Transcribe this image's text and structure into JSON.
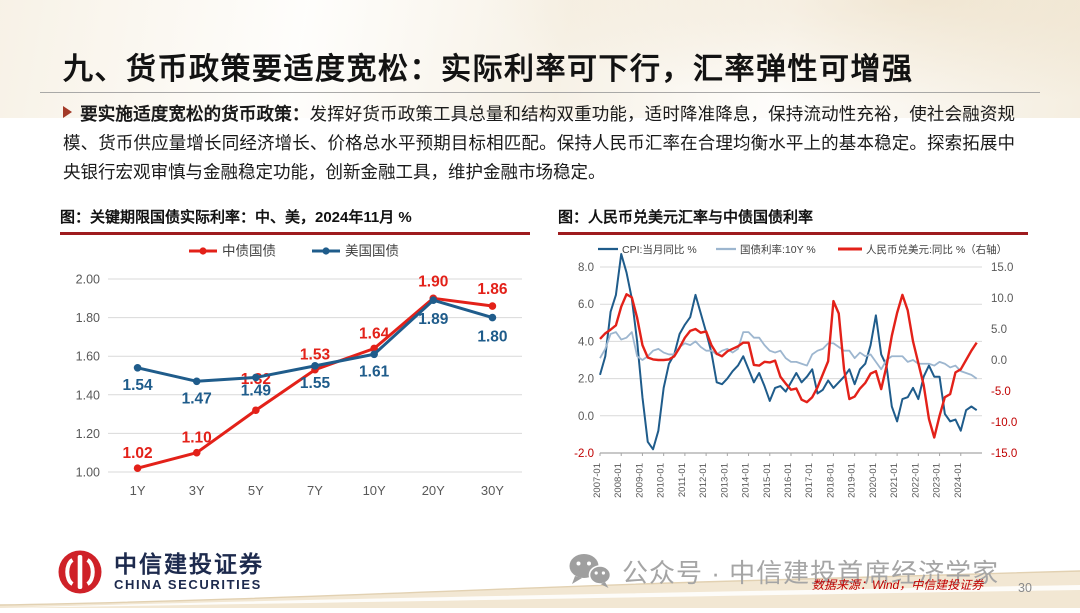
{
  "slide": {
    "title": "九、货币政策要适度宽松：实际利率可下行，汇率弹性可增强",
    "bullet_lead": "要实施适度宽松的货币政策：",
    "bullet_body": "发挥好货币政策工具总量和结构双重功能，适时降准降息，保持流动性充裕，使社会融资规模、货币供应量增长同经济增长、价格总水平预期目标相匹配。保持人民币汇率在合理均衡水平上的基本稳定。探索拓展中央银行宏观审慎与金融稳定功能，创新金融工具，维护金融市场稳定。",
    "page_number": "30"
  },
  "footer": {
    "logo_cn": "中信建投证券",
    "logo_en": "CHINA SECURITIES",
    "wechat_text": "公众号 · 中信建投首席经济学家",
    "source_note": "数据来源：Wind，中信建投证券"
  },
  "colors": {
    "caption_rule": "#9e1b1e",
    "series_red": "#e32119",
    "series_blue": "#1f5c8b",
    "series_lightblue": "#9db6cf",
    "grid": "#d9d9d9",
    "axis_label": "#595959",
    "negative_label": "#c00000",
    "logo_red": "#cf2128"
  },
  "chart_data": [
    {
      "type": "line",
      "title": "图：关键期限国债实际利率：中、美，2024年11月 %",
      "categories": [
        "1Y",
        "3Y",
        "5Y",
        "7Y",
        "10Y",
        "20Y",
        "30Y"
      ],
      "series": [
        {
          "name": "中债国债",
          "color": "#e32119",
          "values": [
            1.02,
            1.1,
            1.32,
            1.53,
            1.64,
            1.9,
            1.86
          ]
        },
        {
          "name": "美国国债",
          "color": "#1f5c8b",
          "values": [
            1.54,
            1.47,
            1.49,
            1.55,
            1.61,
            1.89,
            1.8
          ]
        }
      ],
      "ylim": [
        1.0,
        2.0
      ],
      "yticks": [
        2.0,
        1.8,
        1.6,
        1.4,
        1.2,
        1.0
      ],
      "data_labels": true,
      "legend_position": "top",
      "grid": true
    },
    {
      "type": "line",
      "title": "图：人民币兑美元汇率与中债国债利率",
      "x_start": 2007.0,
      "x_step": 0.25,
      "x_tick_labels": [
        "2007-01",
        "2008-01",
        "2009-01",
        "2010-01",
        "2011-01",
        "2012-01",
        "2013-01",
        "2014-01",
        "2015-01",
        "2016-01",
        "2017-01",
        "2018-01",
        "2019-01",
        "2020-01",
        "2021-01",
        "2022-01",
        "2023-01",
        "2024-01"
      ],
      "left_ylim": [
        -2.0,
        8.0
      ],
      "left_yticks": [
        8.0,
        6.0,
        4.0,
        2.0,
        0.0,
        -2.0
      ],
      "right_ylim": [
        -15.0,
        15.0
      ],
      "right_yticks": [
        15.0,
        10.0,
        5.0,
        0.0,
        -5.0,
        -10.0,
        -15.0
      ],
      "legend_position": "top",
      "grid": true,
      "series": [
        {
          "name": "CPI:当月同比 %",
          "axis": "left",
          "color": "#1f5c8b",
          "width": 2,
          "values": [
            2.2,
            3.2,
            5.6,
            6.5,
            8.7,
            7.7,
            6.3,
            4.0,
            1.0,
            -1.4,
            -1.8,
            -0.8,
            1.5,
            2.8,
            3.3,
            4.4,
            4.9,
            5.3,
            6.5,
            5.5,
            4.5,
            3.4,
            1.8,
            1.7,
            2.0,
            2.4,
            2.7,
            3.2,
            2.5,
            1.8,
            2.3,
            1.6,
            0.8,
            1.5,
            1.6,
            1.3,
            1.8,
            2.3,
            1.8,
            2.1,
            2.5,
            1.2,
            1.4,
            1.9,
            1.5,
            1.8,
            2.1,
            2.5,
            1.7,
            2.5,
            2.8,
            3.8,
            5.4,
            3.3,
            2.7,
            0.5,
            -0.3,
            0.9,
            1.0,
            1.5,
            0.9,
            2.1,
            2.7,
            2.1,
            2.1,
            0.1,
            -0.3,
            -0.2,
            -0.8,
            0.3,
            0.5,
            0.3
          ]
        },
        {
          "name": "国债利率:10Y %",
          "axis": "left",
          "color": "#9db6cf",
          "width": 1.8,
          "values": [
            3.1,
            3.6,
            4.4,
            4.5,
            4.1,
            4.2,
            4.5,
            3.2,
            3.0,
            3.2,
            3.5,
            3.6,
            3.4,
            3.3,
            3.3,
            3.7,
            3.9,
            3.8,
            4.0,
            3.7,
            3.5,
            3.5,
            3.3,
            3.5,
            3.6,
            3.4,
            3.6,
            4.5,
            4.5,
            4.2,
            4.2,
            3.8,
            3.5,
            3.4,
            3.5,
            3.1,
            2.9,
            2.9,
            2.8,
            2.7,
            3.3,
            3.5,
            3.6,
            3.9,
            3.9,
            3.7,
            3.5,
            3.5,
            3.1,
            3.4,
            3.2,
            3.3,
            2.9,
            2.5,
            3.0,
            3.2,
            3.2,
            3.2,
            2.9,
            3.0,
            2.8,
            2.8,
            2.8,
            2.7,
            2.9,
            2.8,
            2.6,
            2.7,
            2.4,
            2.3,
            2.2,
            2.0
          ]
        },
        {
          "name": "人民币兑美元:同比  %（右轴）",
          "axis": "right",
          "color": "#e32119",
          "width": 2.4,
          "values": [
            3.4,
            4.3,
            4.9,
            5.6,
            8.6,
            10.6,
            10.1,
            6.8,
            2.4,
            0.4,
            0.1,
            0.0,
            0.0,
            0.1,
            0.6,
            2.0,
            3.6,
            4.7,
            5.0,
            4.4,
            4.6,
            2.4,
            1.0,
            0.6,
            1.4,
            1.8,
            2.2,
            2.8,
            2.8,
            -0.8,
            -0.9,
            -0.3,
            -0.4,
            -0.1,
            -2.7,
            -3.8,
            -4.8,
            -4.6,
            -6.4,
            -6.8,
            -6.0,
            -4.4,
            -2.3,
            -0.2,
            9.5,
            7.5,
            -1.5,
            -6.3,
            -5.9,
            -4.6,
            -3.7,
            -2.2,
            -1.8,
            -4.7,
            -1.0,
            3.9,
            7.6,
            10.5,
            8.0,
            3.0,
            -0.5,
            -4.0,
            -9.5,
            -12.5,
            -9.0,
            -6.0,
            -5.5,
            -2.0,
            -1.5,
            0.0,
            1.5,
            2.8
          ]
        }
      ]
    }
  ]
}
